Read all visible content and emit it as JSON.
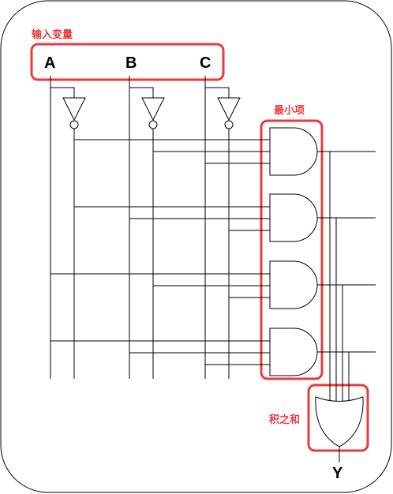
{
  "annotations": {
    "inputs": "输入变量",
    "minterms": "最小项",
    "sum_of_products": "积之和"
  },
  "variables": [
    "A",
    "B",
    "C"
  ],
  "output": "Y",
  "colors": {
    "highlight": "#ea3a3f",
    "wire": "#000000"
  }
}
